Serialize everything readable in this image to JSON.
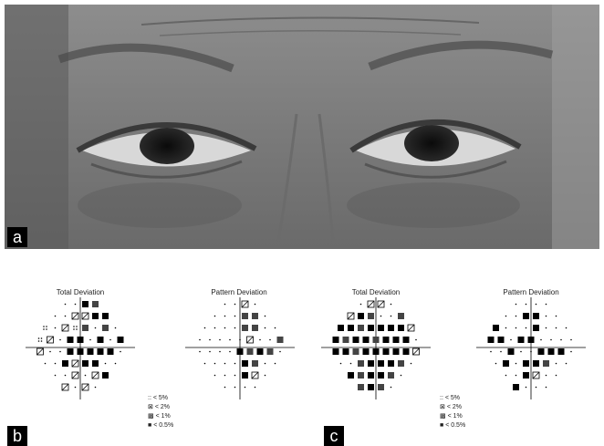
{
  "labels": {
    "a": "a",
    "b": "b",
    "c": "c"
  },
  "panels": [
    {
      "id": "b-total",
      "title": "Total Deviation"
    },
    {
      "id": "b-pattern",
      "title": "Pattern Deviation"
    },
    {
      "id": "c-total",
      "title": "Total Deviation"
    },
    {
      "id": "c-pattern",
      "title": "Pattern Deviation"
    }
  ],
  "legend": {
    "items": [
      {
        "symbol": "::",
        "label": "< 5%"
      },
      {
        "symbol": "⊠",
        "label": "< 2%"
      },
      {
        "symbol": "▩",
        "label": "< 1%"
      },
      {
        "symbol": "■",
        "label": "< 0.5%"
      }
    ]
  },
  "colors": {
    "background": "#ffffff",
    "skin": "#8a8a8a",
    "label_bg": "#000000"
  }
}
